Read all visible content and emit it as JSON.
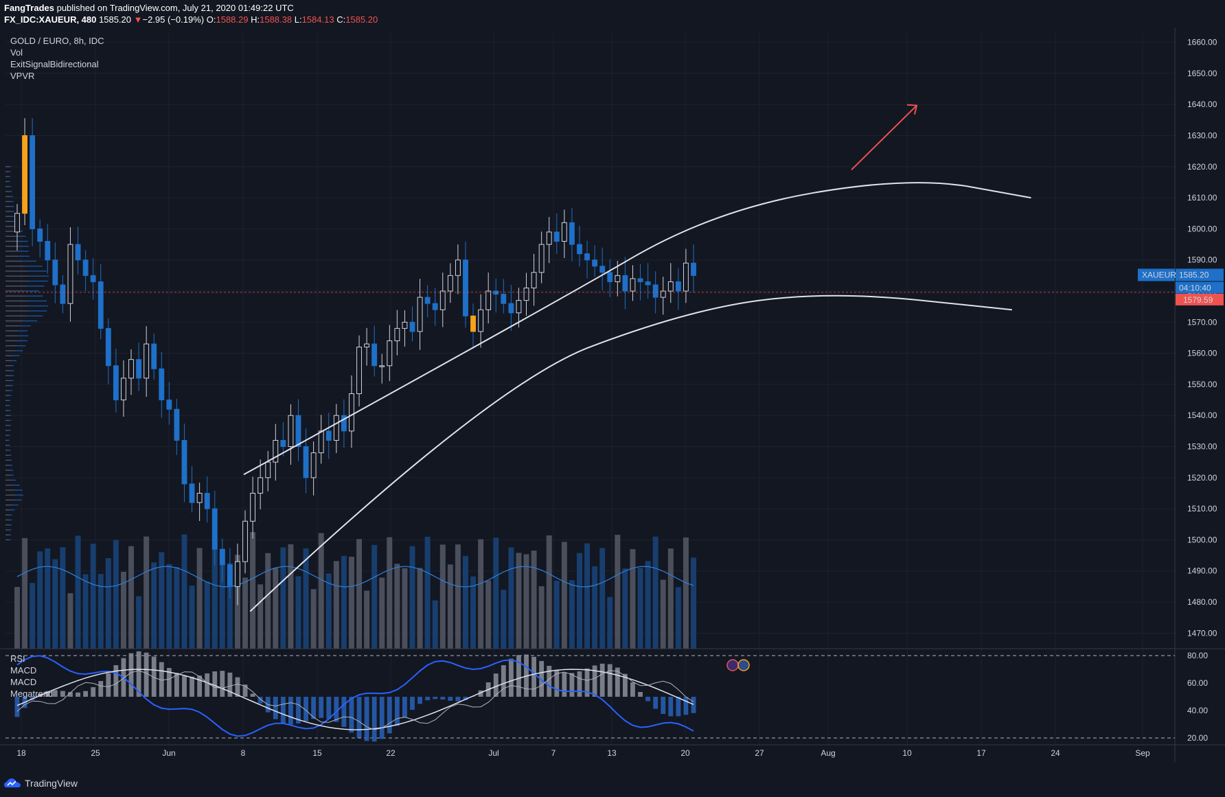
{
  "header": {
    "author": "FangTrades",
    "published": "published on TradingView.com, July 21, 2020 01:49:22 UTC",
    "symbol": "FX_IDC:XAUEUR, 480",
    "last": "1585.20",
    "change_arrow": "▼",
    "change": "−2.95 (−0.19%)",
    "o_label": "O:",
    "o_value": "1588.29",
    "h_label": "H:",
    "h_value": "1588.38",
    "l_label": "L:",
    "l_value": "1584.13",
    "c_label": "C:",
    "c_value": "1585.20"
  },
  "legend": {
    "title": "GOLD / EURO, 8h, IDC",
    "vol": "Vol",
    "exit": "ExitSignalBidirectional",
    "vpvr": "VPVR"
  },
  "indicator_labels": [
    "RSI",
    "MACD",
    "MACD",
    "Megatrend"
  ],
  "price_badges": {
    "symbol": "XAUEUR",
    "price": "1585.20",
    "countdown": "04:10:40",
    "level": "1579.59"
  },
  "brand": {
    "name": "TradingView"
  },
  "colors": {
    "background": "#131722",
    "up_candle": "#d1d4dc",
    "down_candle": "#1e70c8",
    "signal_candle": "#f7a21b",
    "arrow": "#ef5350",
    "level_line": "#ef5350",
    "volume_up": "#4b4f5b",
    "volume_down": "#173e6e",
    "rsi_line": "#2962ff"
  },
  "chart_data": {
    "type": "candlestick",
    "x_ticks": [
      "18",
      "25",
      "Jun",
      "8",
      "15",
      "22",
      "Jul",
      "7",
      "13",
      "20",
      "27",
      "Aug",
      "10",
      "17",
      "24",
      "Sep"
    ],
    "y_ticks": [
      1660,
      1650,
      1640,
      1630,
      1620,
      1610,
      1600,
      1590,
      1580,
      1570,
      1560,
      1550,
      1540,
      1530,
      1520,
      1510,
      1500,
      1490,
      1480,
      1470
    ],
    "y_tick_labels": [
      "1660.00",
      "1650.00",
      "1640.00",
      "1630.00",
      "1620.00",
      "1610.00",
      "1600.00",
      "1590.00",
      "1580.00",
      "1570.00",
      "1560.00",
      "1550.00",
      "1540.00",
      "1530.00",
      "1520.00",
      "1510.00",
      "1500.00",
      "1490.00",
      "1480.00",
      "1470.00"
    ],
    "ylim": [
      1465,
      1663
    ],
    "last_price": 1585.2,
    "horizontal_level": 1579.59,
    "close_path": [
      1605,
      1630,
      1600,
      1596,
      1590,
      1582,
      1576,
      1595,
      1590,
      1585,
      1583,
      1568,
      1556,
      1545,
      1552,
      1558,
      1552,
      1563,
      1555,
      1545,
      1542,
      1532,
      1518,
      1512,
      1515,
      1510,
      1497,
      1492,
      1485,
      1493,
      1506,
      1515,
      1520,
      1525,
      1532,
      1530,
      1540,
      1530,
      1520,
      1528,
      1535,
      1532,
      1540,
      1535,
      1547,
      1562,
      1563,
      1556,
      1556,
      1564,
      1568,
      1570,
      1567,
      1578,
      1576,
      1574,
      1580,
      1585,
      1590,
      1572,
      1567,
      1574,
      1580,
      1579,
      1576,
      1573,
      1577,
      1581,
      1586,
      1595,
      1599,
      1596,
      1602,
      1595,
      1592,
      1590,
      1588,
      1586,
      1583,
      1585,
      1580,
      1584,
      1583,
      1582,
      1578,
      1580,
      1583,
      1580,
      1589,
      1585
    ],
    "signal_bar_indices": [
      1,
      60
    ],
    "channel_upper_points": [
      [
        1521,
        1478
      ],
      [
        1575,
        1574
      ],
      [
        1606,
        1626
      ],
      [
        1617,
        1688
      ],
      [
        1610,
        1726
      ]
    ],
    "channel_lower_points": [
      [
        1477,
        1480
      ],
      [
        1550,
        1556
      ],
      [
        1574,
        1618
      ],
      [
        1580,
        1663
      ],
      [
        1574,
        1720
      ]
    ],
    "arrow": {
      "from": [
        1619,
        1642
      ],
      "to": [
        1641,
        1670
      ]
    },
    "rsi": {
      "ylim": [
        15,
        85
      ],
      "ticks": [
        80,
        60,
        40,
        20
      ],
      "tick_labels": [
        "80.00",
        "60.00",
        "40.00",
        "20.00"
      ],
      "bands": [
        80,
        20
      ]
    }
  }
}
